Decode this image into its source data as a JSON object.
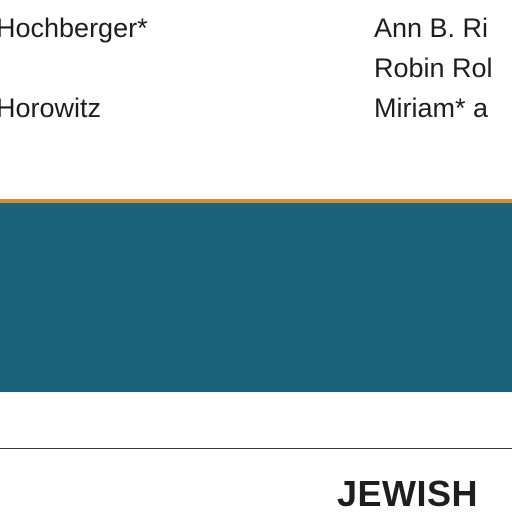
{
  "left_column": [
    "Hochberger*",
    "Horowitz"
  ],
  "right_column": [
    "Ann B. Ri",
    "Robin Rol",
    "Miriam* a"
  ],
  "section_heading": "JEWISH"
}
